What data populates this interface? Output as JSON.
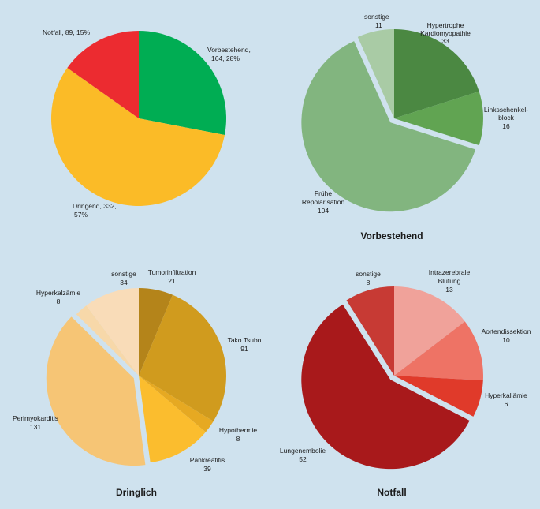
{
  "chart_data": [
    {
      "type": "pie",
      "title": "",
      "slices": [
        {
          "label": "Vorbestehend,",
          "label2": "164, 28%",
          "value": 164,
          "color": "#00ad53"
        },
        {
          "label": "Dringend, 332,",
          "label2": "57%",
          "value": 332,
          "color": "#fbbb27"
        },
        {
          "label": "Notfall, 89, 15%",
          "label2": "",
          "value": 89,
          "color": "#ec2b30"
        }
      ]
    },
    {
      "type": "pie",
      "title": "Vorbestehend",
      "slices": [
        {
          "label": "Hypertrophe",
          "label2": "Kardiomyopathie",
          "label3": "33",
          "value": 33,
          "color": "#4b8842"
        },
        {
          "label": "Linksschenkel-",
          "label2": "block",
          "label3": "16",
          "value": 16,
          "color": "#61a452"
        },
        {
          "label": "Frühe",
          "label2": "Repolarisation",
          "label3": "104",
          "value": 104,
          "color": "#82b57f"
        },
        {
          "label": "sonstige",
          "label2": "11",
          "value": 11,
          "color": "#a9cba5"
        }
      ]
    },
    {
      "type": "pie",
      "title": "Dringlich",
      "slices": [
        {
          "label": "Tumorinfiltration",
          "label2": "21",
          "value": 21,
          "color": "#b4841a"
        },
        {
          "label": "Tako Tsubo",
          "label2": "91",
          "value": 91,
          "color": "#d09b1e"
        },
        {
          "label": "Hypothermie",
          "label2": "8",
          "value": 8,
          "color": "#e6a922"
        },
        {
          "label": "Pankreatitis",
          "label2": "39",
          "value": 39,
          "color": "#fbbd2e"
        },
        {
          "label": "Perimyokarditis",
          "label2": "131",
          "value": 131,
          "color": "#f6c575"
        },
        {
          "label": "Hyperkalzämie",
          "label2": "8",
          "value": 8,
          "color": "#f7d8a9"
        },
        {
          "label": "sonstige",
          "label2": "34",
          "value": 34,
          "color": "#f9dcb8"
        }
      ]
    },
    {
      "type": "pie",
      "title": "Notfall",
      "slices": [
        {
          "label": "Intrazerebrale",
          "label2": "Blutung",
          "label3": "13",
          "value": 13,
          "color": "#f0a29a"
        },
        {
          "label": "Aortendissektion",
          "label2": "10",
          "value": 10,
          "color": "#ee7365"
        },
        {
          "label": "Hyperkaliämie",
          "label2": "6",
          "value": 6,
          "color": "#e03a2a"
        },
        {
          "label": "Lungenembolie",
          "label2": "52",
          "value": 52,
          "color": "#a8191b"
        },
        {
          "label": "sonstige",
          "label2": "8",
          "value": 8,
          "color": "#c73a34"
        }
      ]
    }
  ]
}
